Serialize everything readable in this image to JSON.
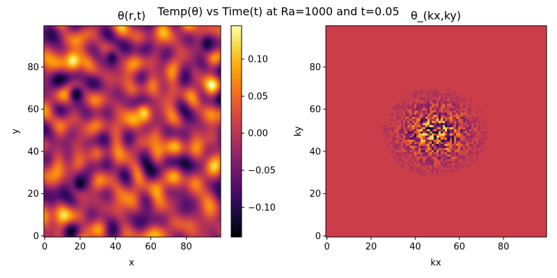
{
  "suptitle": "Temp(θ) vs Time(t) at Ra=1000 and t=0.05",
  "colors": {
    "colormap": "inferno",
    "spectrum_background": "#cb3e49"
  },
  "chart_data": [
    {
      "type": "heatmap",
      "title": "θ(r,t)",
      "xlabel": "x",
      "ylabel": "y",
      "xlim": [
        0,
        99
      ],
      "ylim": [
        0,
        99
      ],
      "xticks": [
        0,
        20,
        40,
        60,
        80
      ],
      "yticks": [
        0,
        20,
        40,
        60,
        80
      ],
      "grid": false,
      "colorbar": {
        "range": [
          -0.14,
          0.145
        ],
        "ticks": [
          "0.10",
          "0.05",
          "0.00",
          "−0.05",
          "−0.10"
        ],
        "tick_values": [
          0.1,
          0.05,
          0.0,
          -0.05,
          -0.1
        ]
      },
      "notable_values": [
        {
          "x": 16,
          "y": 83,
          "value": 0.14
        },
        {
          "x": 56,
          "y": 58,
          "value": 0.12
        },
        {
          "x": 18,
          "y": 67,
          "value": -0.13
        },
        {
          "x": 20,
          "y": 25,
          "value": -0.13
        },
        {
          "x": 38,
          "y": 84,
          "value": -0.11
        },
        {
          "x": 92,
          "y": 91,
          "value": -0.12
        }
      ]
    },
    {
      "type": "heatmap",
      "title": "θ_(kx,ky)",
      "xlabel": "kx",
      "ylabel": "ky",
      "xlim": [
        0,
        99
      ],
      "ylim": [
        0,
        99
      ],
      "xticks": [
        0,
        20,
        40,
        60,
        80
      ],
      "yticks": [
        0,
        20,
        40,
        60,
        80
      ],
      "grid": false,
      "background_value": 0.0,
      "spectrum_center": [
        49,
        49
      ],
      "spectrum_radius": 22
    }
  ]
}
